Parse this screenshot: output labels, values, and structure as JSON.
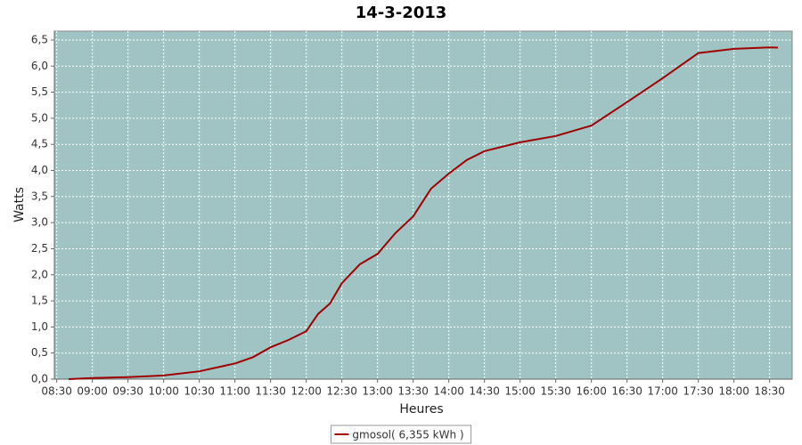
{
  "chart_data": {
    "type": "line",
    "title": "14-3-2013",
    "x_label": "Heures",
    "y_label": "Watts",
    "x": [
      "08:40",
      "09:00",
      "09:30",
      "10:00",
      "10:30",
      "11:00",
      "11:15",
      "11:30",
      "11:45",
      "12:00",
      "12:10",
      "12:20",
      "12:30",
      "12:45",
      "13:00",
      "13:15",
      "13:30",
      "13:45",
      "14:00",
      "14:15",
      "14:30",
      "15:00",
      "15:30",
      "16:00",
      "16:30",
      "17:00",
      "17:30",
      "18:00",
      "18:30",
      "18:37"
    ],
    "series": [
      {
        "name": "gmosol( 6,355 kWh )",
        "color": "#a00000",
        "values": [
          0.0,
          0.02,
          0.04,
          0.07,
          0.15,
          0.3,
          0.42,
          0.61,
          0.75,
          0.92,
          1.25,
          1.45,
          1.84,
          2.2,
          2.4,
          2.8,
          3.12,
          3.65,
          3.94,
          4.2,
          4.37,
          4.54,
          4.66,
          4.86,
          5.31,
          5.77,
          6.25,
          6.33,
          6.36,
          6.355
        ]
      }
    ],
    "xlim": [
      "08:28",
      "18:49"
    ],
    "xticks": [
      "08:30",
      "09:00",
      "09:30",
      "10:00",
      "10:30",
      "11:00",
      "11:30",
      "12:00",
      "12:30",
      "13:00",
      "13:30",
      "14:00",
      "14:30",
      "15:00",
      "15:30",
      "16:00",
      "16:30",
      "17:00",
      "17:30",
      "18:00",
      "18:30"
    ],
    "ylim": [
      0,
      6.67
    ],
    "yticks": [
      {
        "value": 0,
        "label": "0,0"
      },
      {
        "value": 0.5,
        "label": "0,5"
      },
      {
        "value": 1,
        "label": "1,0"
      },
      {
        "value": 1.5,
        "label": "1,5"
      },
      {
        "value": 2,
        "label": "2,0"
      },
      {
        "value": 2.5,
        "label": "2,5"
      },
      {
        "value": 3,
        "label": "3,0"
      },
      {
        "value": 3.5,
        "label": "3,5"
      },
      {
        "value": 4,
        "label": "4,0"
      },
      {
        "value": 4.5,
        "label": "4,5"
      },
      {
        "value": 5,
        "label": "5,0"
      },
      {
        "value": 5.5,
        "label": "5,5"
      },
      {
        "value": 6,
        "label": "6,0"
      },
      {
        "value": 6.5,
        "label": "6,5"
      }
    ],
    "grid": true,
    "background": "#a0c4c4",
    "legend": "bottom"
  }
}
